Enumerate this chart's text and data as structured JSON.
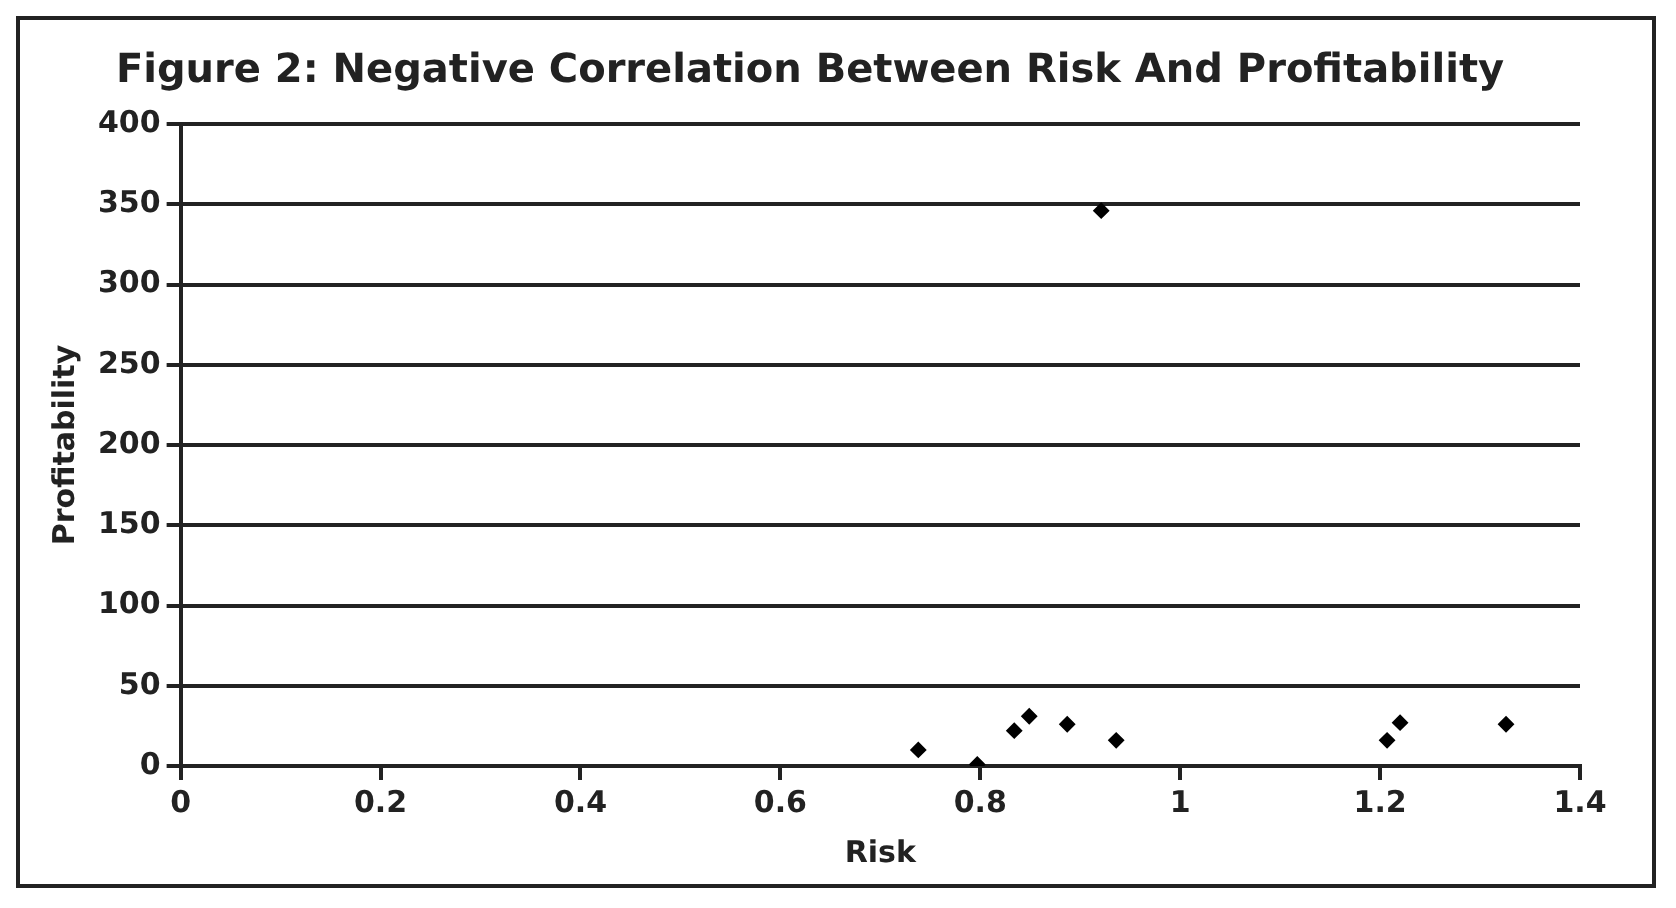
{
  "chart_data": {
    "type": "scatter",
    "title": "Figure 2: Negative Correlation Between Risk And Profitability",
    "xlabel": "Risk",
    "ylabel": "Profitability",
    "series": [
      {
        "color": "#000000",
        "x": [
          0.738,
          0.797,
          0.834,
          0.849,
          0.887,
          0.921,
          0.936,
          1.207,
          1.22,
          1.326
        ],
        "values": [
          10,
          1,
          22,
          31,
          26,
          346,
          16,
          16,
          27,
          26
        ]
      }
    ],
    "xlim": [
      0,
      1.4
    ],
    "xticks": [
      0,
      0.2,
      0.4,
      0.6,
      0.8,
      1,
      1.2,
      1.4
    ],
    "ylim": [
      0,
      400
    ],
    "yticks": [
      0,
      50,
      100,
      150,
      200,
      250,
      300,
      350,
      400
    ],
    "grid": "y",
    "legend": false,
    "marker": "diamond"
  }
}
